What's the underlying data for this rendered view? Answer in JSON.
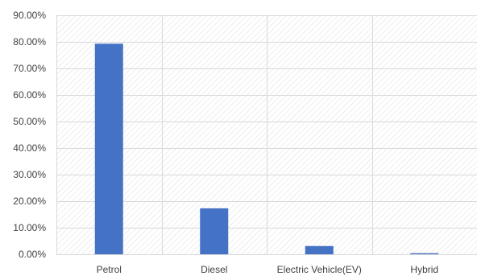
{
  "chart_data": {
    "type": "bar",
    "title": "",
    "xlabel": "",
    "ylabel": "",
    "categories": [
      "Petrol",
      "Diesel",
      "Electric Vehicle(EV)",
      "Hybrid"
    ],
    "series": [
      {
        "values": [
          79.3,
          17.3,
          3.1,
          0.4
        ]
      }
    ],
    "ylim": [
      0,
      90
    ],
    "yticks": [
      0,
      10,
      20,
      30,
      40,
      50,
      60,
      70,
      80,
      90
    ],
    "ytick_labels": [
      "0.00%",
      "10.00%",
      "20.00%",
      "30.00%",
      "40.00%",
      "50.00%",
      "60.00%",
      "70.00%",
      "80.00%",
      "90.00%"
    ],
    "grid": true,
    "plot_background": "hatched",
    "legend": "none",
    "colors": {
      "bar": "#4472C4",
      "grid": "#d9d9d9",
      "hatch": "#d9d9d9",
      "text": "#404040"
    }
  }
}
